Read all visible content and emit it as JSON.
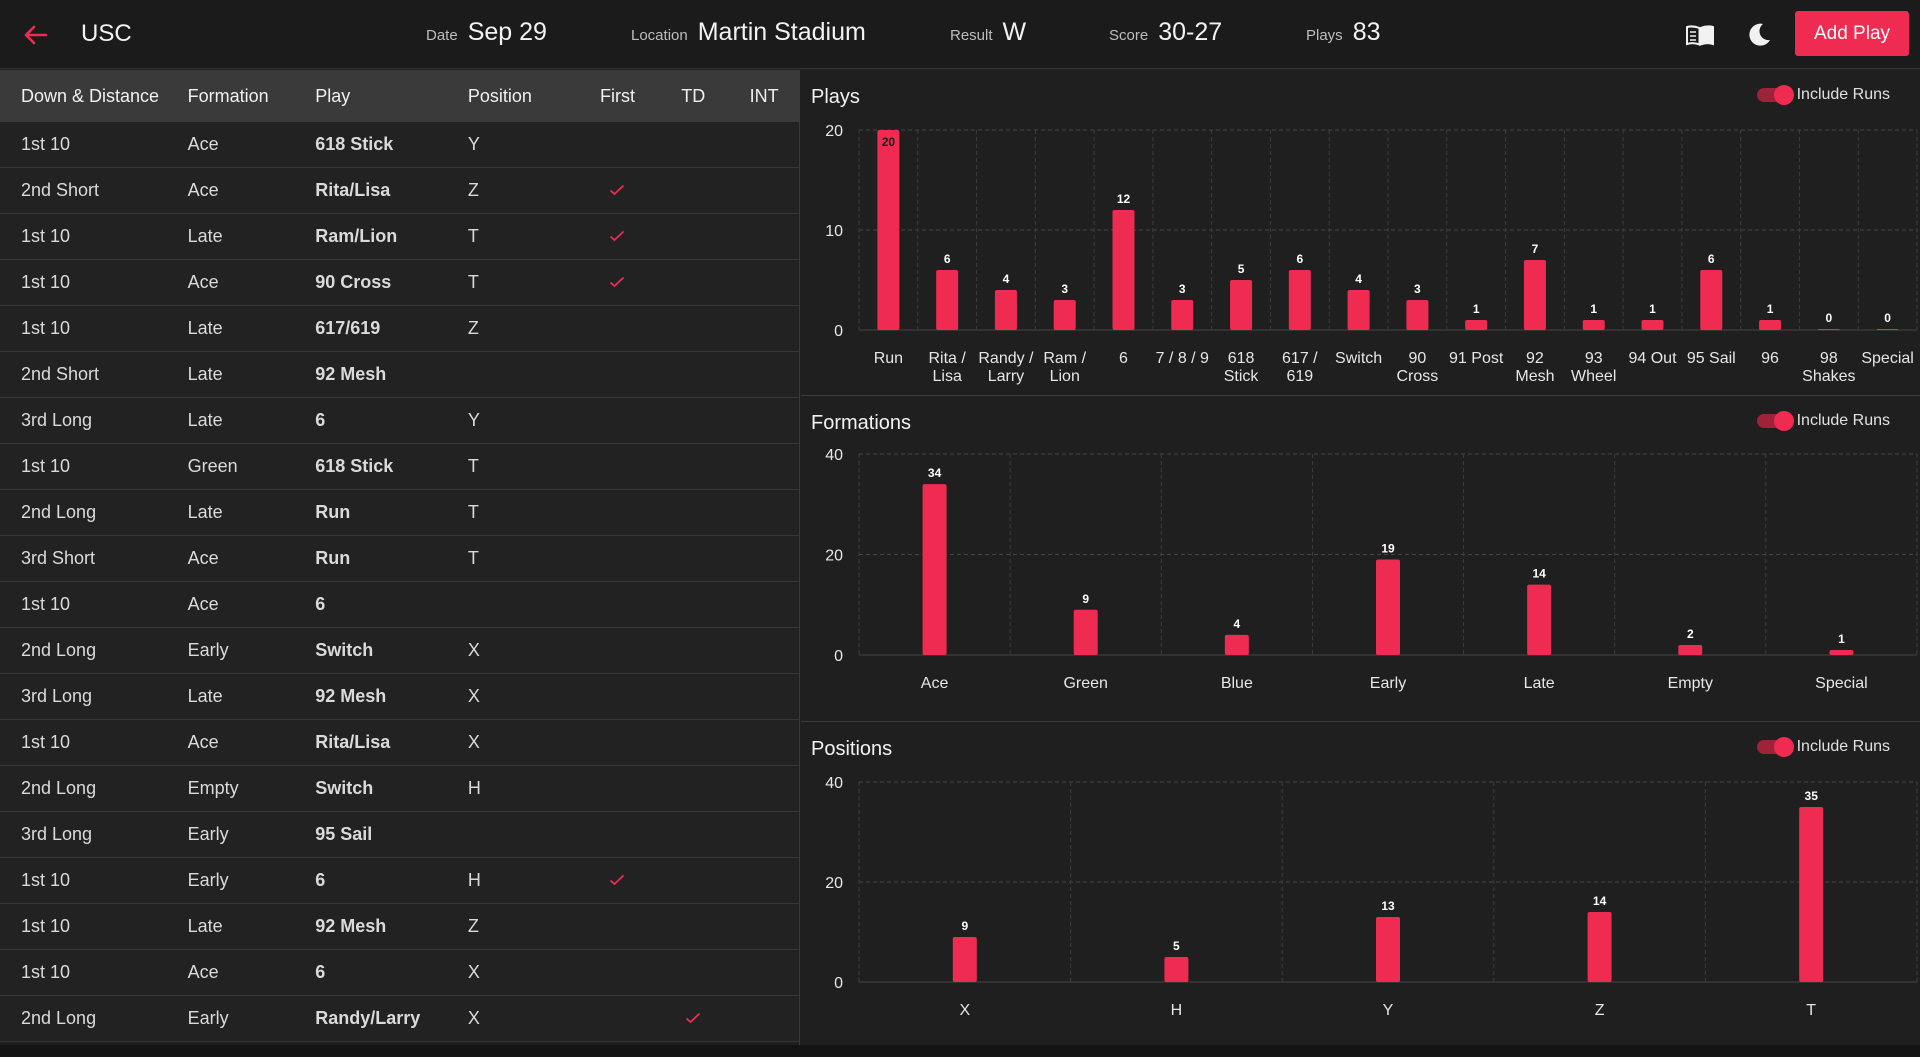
{
  "header": {
    "team": "USC",
    "date_label": "Date",
    "date": "Sep 29",
    "location_label": "Location",
    "location": "Martin Stadium",
    "result_label": "Result",
    "result": "W",
    "score_label": "Score",
    "score": "30-27",
    "plays_label": "Plays",
    "plays": "83",
    "add_play": "Add Play",
    "icons": [
      "arrow-left-icon",
      "book-icon",
      "moon-icon"
    ],
    "accent": "#ef2b52"
  },
  "table": {
    "columns": [
      "Down & Distance",
      "Formation",
      "Play",
      "Position",
      "First",
      "TD",
      "INT"
    ],
    "rows": [
      {
        "down": "1st 10",
        "formation": "Ace",
        "play": "618 Stick",
        "position": "Y",
        "first": false,
        "td": false,
        "int": false
      },
      {
        "down": "2nd Short",
        "formation": "Ace",
        "play": "Rita/Lisa",
        "position": "Z",
        "first": true,
        "td": false,
        "int": false
      },
      {
        "down": "1st 10",
        "formation": "Late",
        "play": "Ram/Lion",
        "position": "T",
        "first": true,
        "td": false,
        "int": false
      },
      {
        "down": "1st 10",
        "formation": "Ace",
        "play": "90 Cross",
        "position": "T",
        "first": true,
        "td": false,
        "int": false
      },
      {
        "down": "1st 10",
        "formation": "Late",
        "play": "617/619",
        "position": "Z",
        "first": false,
        "td": false,
        "int": false
      },
      {
        "down": "2nd Short",
        "formation": "Late",
        "play": "92 Mesh",
        "position": "",
        "first": false,
        "td": false,
        "int": false
      },
      {
        "down": "3rd Long",
        "formation": "Late",
        "play": "6",
        "position": "Y",
        "first": false,
        "td": false,
        "int": false
      },
      {
        "down": "1st 10",
        "formation": "Green",
        "play": "618 Stick",
        "position": "T",
        "first": false,
        "td": false,
        "int": false
      },
      {
        "down": "2nd Long",
        "formation": "Late",
        "play": "Run",
        "position": "T",
        "first": false,
        "td": false,
        "int": false
      },
      {
        "down": "3rd Short",
        "formation": "Ace",
        "play": "Run",
        "position": "T",
        "first": false,
        "td": false,
        "int": false
      },
      {
        "down": "1st 10",
        "formation": "Ace",
        "play": "6",
        "position": "",
        "first": false,
        "td": false,
        "int": false
      },
      {
        "down": "2nd Long",
        "formation": "Early",
        "play": "Switch",
        "position": "X",
        "first": false,
        "td": false,
        "int": false
      },
      {
        "down": "3rd Long",
        "formation": "Late",
        "play": "92 Mesh",
        "position": "X",
        "first": false,
        "td": false,
        "int": false
      },
      {
        "down": "1st 10",
        "formation": "Ace",
        "play": "Rita/Lisa",
        "position": "X",
        "first": false,
        "td": false,
        "int": false
      },
      {
        "down": "2nd Long",
        "formation": "Empty",
        "play": "Switch",
        "position": "H",
        "first": false,
        "td": false,
        "int": false
      },
      {
        "down": "3rd Long",
        "formation": "Early",
        "play": "95 Sail",
        "position": "",
        "first": false,
        "td": false,
        "int": false
      },
      {
        "down": "1st 10",
        "formation": "Early",
        "play": "6",
        "position": "H",
        "first": true,
        "td": false,
        "int": false
      },
      {
        "down": "1st 10",
        "formation": "Late",
        "play": "92 Mesh",
        "position": "Z",
        "first": false,
        "td": false,
        "int": false
      },
      {
        "down": "1st 10",
        "formation": "Ace",
        "play": "6",
        "position": "X",
        "first": false,
        "td": false,
        "int": false
      },
      {
        "down": "2nd Long",
        "formation": "Early",
        "play": "Randy/Larry",
        "position": "X",
        "first": false,
        "td": true,
        "int": false
      }
    ],
    "check_color": "#ef2b52"
  },
  "toggle_label": "Include Runs",
  "chart_data": [
    {
      "type": "bar",
      "title": "Plays",
      "include_runs": true,
      "categories": [
        "Run",
        "Rita / Lisa",
        "Randy / Larry",
        "Ram / Lion",
        "6",
        "7 / 8 / 9",
        "618 Stick",
        "617 / 619",
        "Switch",
        "90 Cross",
        "91 Post",
        "92 Mesh",
        "93 Wheel",
        "94 Out",
        "95 Sail",
        "96",
        "98 Shakes",
        "Special"
      ],
      "values": [
        20,
        6,
        4,
        3,
        12,
        3,
        5,
        6,
        4,
        3,
        1,
        7,
        1,
        1,
        6,
        1,
        0,
        0
      ],
      "yticks": [
        0,
        10,
        20
      ],
      "ylim": [
        0,
        20
      ],
      "grid": true,
      "color": "#ef2b52"
    },
    {
      "type": "bar",
      "title": "Formations",
      "include_runs": true,
      "categories": [
        "Ace",
        "Green",
        "Blue",
        "Early",
        "Late",
        "Empty",
        "Special"
      ],
      "values": [
        34,
        9,
        4,
        19,
        14,
        2,
        1
      ],
      "yticks": [
        0,
        20,
        40
      ],
      "ylim": [
        0,
        40
      ],
      "grid": true,
      "color": "#ef2b52"
    },
    {
      "type": "bar",
      "title": "Positions",
      "include_runs": true,
      "categories": [
        "X",
        "H",
        "Y",
        "Z",
        "T"
      ],
      "values": [
        9,
        5,
        13,
        14,
        35
      ],
      "yticks": [
        0,
        20,
        40
      ],
      "ylim": [
        0,
        40
      ],
      "grid": true,
      "color": "#ef2b52"
    }
  ]
}
